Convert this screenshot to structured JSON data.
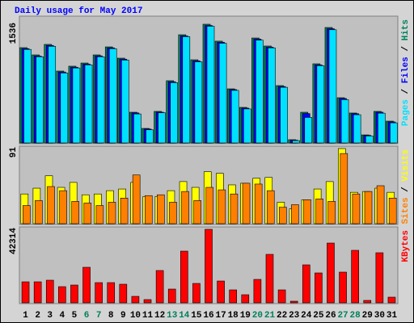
{
  "title": "Daily usage for May 2017",
  "legend_separator": "/",
  "chart_data": [
    {
      "type": "bar",
      "ylim": [
        0,
        1536
      ],
      "yticks": [
        1536
      ],
      "series": [
        {
          "name": "Hits",
          "color": "#00805c",
          "values": [
            1233,
            1139,
            1275,
            930,
            993,
            1034,
            1139,
            1243,
            1097,
            397,
            188,
            408,
            805,
            1400,
            1076,
            1536,
            1317,
            700,
            460,
            1358,
            1254,
            742,
            42,
            397,
            1024,
            1494,
            585,
            387,
            104,
            408,
            282
          ]
        },
        {
          "name": "Files",
          "color": "#0000ff",
          "values": [
            1220,
            1125,
            1262,
            918,
            980,
            1020,
            1126,
            1230,
            1084,
            388,
            180,
            398,
            792,
            1385,
            1062,
            1520,
            1302,
            690,
            450,
            1344,
            1240,
            730,
            36,
            380,
            1010,
            1478,
            575,
            378,
            98,
            398,
            272
          ]
        },
        {
          "name": "Pages",
          "color": "#00e0ff",
          "values": [
            1210,
            1115,
            1250,
            905,
            970,
            1010,
            1115,
            1220,
            1072,
            375,
            170,
            390,
            780,
            1375,
            1050,
            1510,
            1290,
            680,
            440,
            1330,
            1230,
            720,
            30,
            330,
            1000,
            1465,
            560,
            365,
            90,
            385,
            260
          ]
        }
      ]
    },
    {
      "type": "bar",
      "ylim": [
        0,
        91
      ],
      "yticks": [
        91
      ],
      "series": [
        {
          "name": "Visits",
          "color": "#ffff00",
          "values": [
            36,
            43,
            58,
            44,
            50,
            35,
            36,
            40,
            42,
            50,
            33,
            33,
            40,
            51,
            44,
            63,
            61,
            47,
            49,
            55,
            56,
            26,
            18,
            29,
            42,
            51,
            91,
            38,
            39,
            43,
            38
          ]
        },
        {
          "name": "Sites",
          "color": "#ff8000",
          "values": [
            22,
            28,
            45,
            40,
            27,
            25,
            22,
            26,
            31,
            59,
            34,
            35,
            26,
            39,
            28,
            44,
            41,
            36,
            49,
            48,
            40,
            20,
            23,
            29,
            30,
            27,
            85,
            36,
            39,
            46,
            31
          ]
        }
      ]
    },
    {
      "type": "bar",
      "ylim": [
        0,
        42314
      ],
      "yticks": [
        42314
      ],
      "categories": [
        "1",
        "2",
        "3",
        "4",
        "5",
        "6",
        "7",
        "8",
        "9",
        "10",
        "11",
        "12",
        "13",
        "14",
        "15",
        "16",
        "17",
        "18",
        "19",
        "20",
        "21",
        "22",
        "23",
        "24",
        "25",
        "26",
        "27",
        "28",
        "29",
        "30",
        "31"
      ],
      "category_colors": [
        "#000000",
        "#000000",
        "#000000",
        "#000000",
        "#000000",
        "#00805c",
        "#00805c",
        "#000000",
        "#000000",
        "#000000",
        "#000000",
        "#000000",
        "#00805c",
        "#00805c",
        "#000000",
        "#000000",
        "#000000",
        "#000000",
        "#000000",
        "#00805c",
        "#00805c",
        "#000000",
        "#000000",
        "#000000",
        "#000000",
        "#000000",
        "#00805c",
        "#00805c",
        "#000000",
        "#000000",
        "#000000"
      ],
      "series": [
        {
          "name": "KBytes",
          "color": "#ff0000",
          "values": [
            12090,
            12090,
            13020,
            9300,
            10230,
            20460,
            11625,
            11625,
            10695,
            3720,
            1860,
            18600,
            7905,
            29760,
            11160,
            42314,
            12555,
            7440,
            4650,
            13485,
            27900,
            7440,
            930,
            21855,
            17205,
            34410,
            17670,
            30225,
            1395,
            28830,
            3255
          ]
        }
      ]
    }
  ]
}
